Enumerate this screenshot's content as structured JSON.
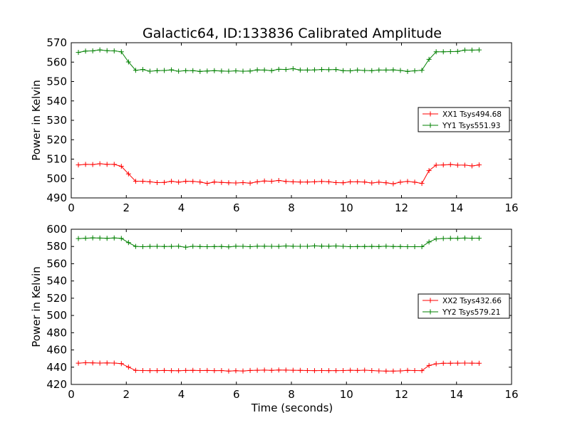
{
  "figure": {
    "title": "Galactic64, ID:133836 Calibrated Amplitude",
    "xlabel": "Time (seconds)"
  },
  "chart_data": [
    {
      "type": "line",
      "title": "Galactic64, ID:133836 Calibrated Amplitude",
      "xlabel": "",
      "ylabel": "Power in Kelvin",
      "xlim": [
        0,
        16
      ],
      "ylim": [
        490,
        570
      ],
      "xticks": [
        "0",
        "2",
        "4",
        "6",
        "8",
        "10",
        "12",
        "14",
        "16"
      ],
      "yticks": [
        "490",
        "500",
        "510",
        "520",
        "530",
        "540",
        "550",
        "560",
        "570"
      ],
      "grid": false,
      "legend_position": "center-right",
      "x": [
        0.26,
        0.52,
        0.78,
        1.04,
        1.3,
        1.56,
        1.82,
        2.08,
        2.34,
        2.6,
        2.86,
        3.12,
        3.38,
        3.64,
        3.9,
        4.16,
        4.42,
        4.68,
        4.94,
        5.2,
        5.46,
        5.72,
        5.98,
        6.24,
        6.5,
        6.76,
        7.02,
        7.28,
        7.54,
        7.8,
        8.06,
        8.32,
        8.58,
        8.84,
        9.1,
        9.36,
        9.62,
        9.88,
        10.14,
        10.4,
        10.66,
        10.92,
        11.18,
        11.44,
        11.7,
        11.96,
        12.22,
        12.48,
        12.74,
        13.0,
        13.26,
        13.52,
        13.78,
        14.04,
        14.3,
        14.56,
        14.82
      ],
      "series": [
        {
          "name": "XX1 Tsys494.68",
          "color": "#ff0000",
          "values": [
            507.0,
            507.3,
            507.2,
            507.6,
            507.3,
            507.3,
            506.3,
            502.4,
            498.6,
            498.6,
            498.3,
            497.9,
            498.0,
            498.6,
            498.1,
            498.6,
            498.5,
            498.2,
            497.5,
            498.2,
            498.0,
            497.8,
            497.7,
            497.9,
            497.6,
            498.3,
            498.7,
            498.6,
            499.0,
            498.5,
            498.3,
            498.2,
            498.2,
            498.3,
            498.5,
            498.3,
            497.9,
            497.8,
            498.3,
            498.3,
            498.2,
            497.7,
            498.1,
            497.8,
            497.3,
            498.1,
            498.5,
            498.1,
            497.5,
            504.1,
            506.9,
            507.0,
            507.2,
            506.9,
            506.9,
            506.5,
            507.0
          ]
        },
        {
          "name": "YY1 Tsys551.93",
          "color": "#008000",
          "values": [
            565.0,
            565.7,
            565.8,
            566.3,
            565.9,
            565.8,
            565.3,
            560.1,
            555.8,
            556.2,
            555.3,
            555.6,
            555.7,
            556.0,
            555.3,
            555.6,
            555.6,
            555.2,
            555.4,
            555.6,
            555.4,
            555.3,
            555.5,
            555.3,
            555.4,
            556.0,
            555.9,
            555.6,
            556.3,
            556.2,
            556.6,
            555.9,
            555.9,
            556.0,
            556.2,
            556.1,
            556.2,
            555.6,
            555.5,
            555.9,
            555.7,
            555.6,
            555.9,
            555.9,
            556.0,
            555.7,
            555.2,
            555.5,
            555.8,
            561.4,
            565.3,
            565.3,
            565.4,
            565.5,
            566.2,
            566.2,
            566.3
          ]
        }
      ]
    },
    {
      "type": "line",
      "title": "",
      "xlabel": "Time (seconds)",
      "ylabel": "Power in Kelvin",
      "xlim": [
        0,
        16
      ],
      "ylim": [
        420,
        600
      ],
      "xticks": [
        "0",
        "2",
        "4",
        "6",
        "8",
        "10",
        "12",
        "14",
        "16"
      ],
      "yticks": [
        "420",
        "440",
        "460",
        "480",
        "500",
        "520",
        "540",
        "560",
        "580",
        "600"
      ],
      "grid": false,
      "legend_position": "center-right",
      "x": [
        0.26,
        0.52,
        0.78,
        1.04,
        1.3,
        1.56,
        1.82,
        2.08,
        2.34,
        2.6,
        2.86,
        3.12,
        3.38,
        3.64,
        3.9,
        4.16,
        4.42,
        4.68,
        4.94,
        5.2,
        5.46,
        5.72,
        5.98,
        6.24,
        6.5,
        6.76,
        7.02,
        7.28,
        7.54,
        7.8,
        8.06,
        8.32,
        8.58,
        8.84,
        9.1,
        9.36,
        9.62,
        9.88,
        10.14,
        10.4,
        10.66,
        10.92,
        11.18,
        11.44,
        11.7,
        11.96,
        12.22,
        12.48,
        12.74,
        13.0,
        13.26,
        13.52,
        13.78,
        14.04,
        14.3,
        14.56,
        14.82
      ],
      "series": [
        {
          "name": "XX2 Tsys432.66",
          "color": "#ff0000",
          "values": [
            444.7,
            445.2,
            445.0,
            444.8,
            444.9,
            444.8,
            444.2,
            440.1,
            436.3,
            436.1,
            436.0,
            436.0,
            436.2,
            436.0,
            435.9,
            436.2,
            436.3,
            436.1,
            436.2,
            436.0,
            436.1,
            435.5,
            435.9,
            435.6,
            436.2,
            436.4,
            436.6,
            436.3,
            436.7,
            436.6,
            436.4,
            436.3,
            436.1,
            436.0,
            436.1,
            436.0,
            436.0,
            436.1,
            436.4,
            436.2,
            436.5,
            436.1,
            435.7,
            435.5,
            435.5,
            435.7,
            436.3,
            436.1,
            436.0,
            442.0,
            443.9,
            444.6,
            444.6,
            444.7,
            444.8,
            444.7,
            444.6
          ]
        },
        {
          "name": "YY2 Tsys579.21",
          "color": "#008000",
          "values": [
            589.2,
            589.6,
            590.0,
            589.8,
            589.5,
            589.9,
            589.4,
            584.5,
            580.1,
            579.8,
            580.1,
            580.2,
            580.0,
            580.1,
            580.3,
            579.1,
            580.2,
            579.9,
            579.8,
            579.9,
            580.0,
            579.6,
            580.3,
            580.2,
            579.8,
            580.3,
            580.3,
            580.2,
            580.1,
            580.6,
            580.3,
            580.2,
            580.2,
            580.7,
            580.4,
            580.3,
            580.6,
            580.2,
            579.8,
            579.9,
            580.0,
            580.1,
            579.9,
            580.3,
            580.0,
            579.9,
            579.8,
            579.8,
            579.8,
            585.2,
            588.8,
            589.3,
            589.5,
            589.5,
            589.8,
            589.6,
            589.6
          ]
        }
      ]
    }
  ]
}
